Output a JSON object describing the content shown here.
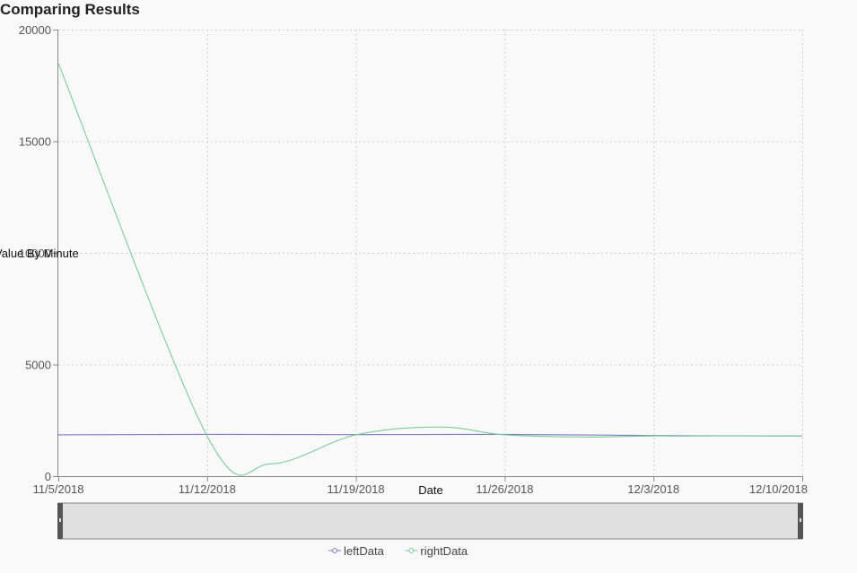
{
  "chart_data": {
    "type": "line",
    "title": "Comparing Results",
    "xlabel": "Date",
    "ylabel": "Value By Minute",
    "x": [
      "11/5/2018",
      "11/12/2018",
      "11/19/2018",
      "11/26/2018",
      "12/3/2018",
      "12/10/2018"
    ],
    "ylim": [
      0,
      20000
    ],
    "yticks": [
      0,
      5000,
      15000,
      20000
    ],
    "ytick_labels": [
      "0",
      "5000",
      "15000",
      "20000"
    ],
    "overlapping_tick_label": "10000",
    "grid": true,
    "legend": "bottom-center",
    "series": [
      {
        "name": "leftData",
        "color": "#7b7bc8",
        "values": [
          1850,
          1870,
          1860,
          1870,
          1820,
          1800
        ]
      },
      {
        "name": "rightData",
        "color": "#7ccc9a",
        "values": [
          18500,
          1800,
          1850,
          1850,
          1800,
          1800
        ]
      }
    ],
    "right_data_curve_extrema": [
      {
        "x": "11/15/2018",
        "y": 550
      },
      {
        "x": "11/23/2018",
        "y": 2200
      },
      {
        "x": "11/30/2018",
        "y": 1750
      }
    ]
  },
  "navigator": {
    "label": "range-navigator"
  },
  "colors": {
    "axis": "#888888",
    "navigator_fill": "#e0e0e0",
    "navigator_handle": "#555555"
  }
}
